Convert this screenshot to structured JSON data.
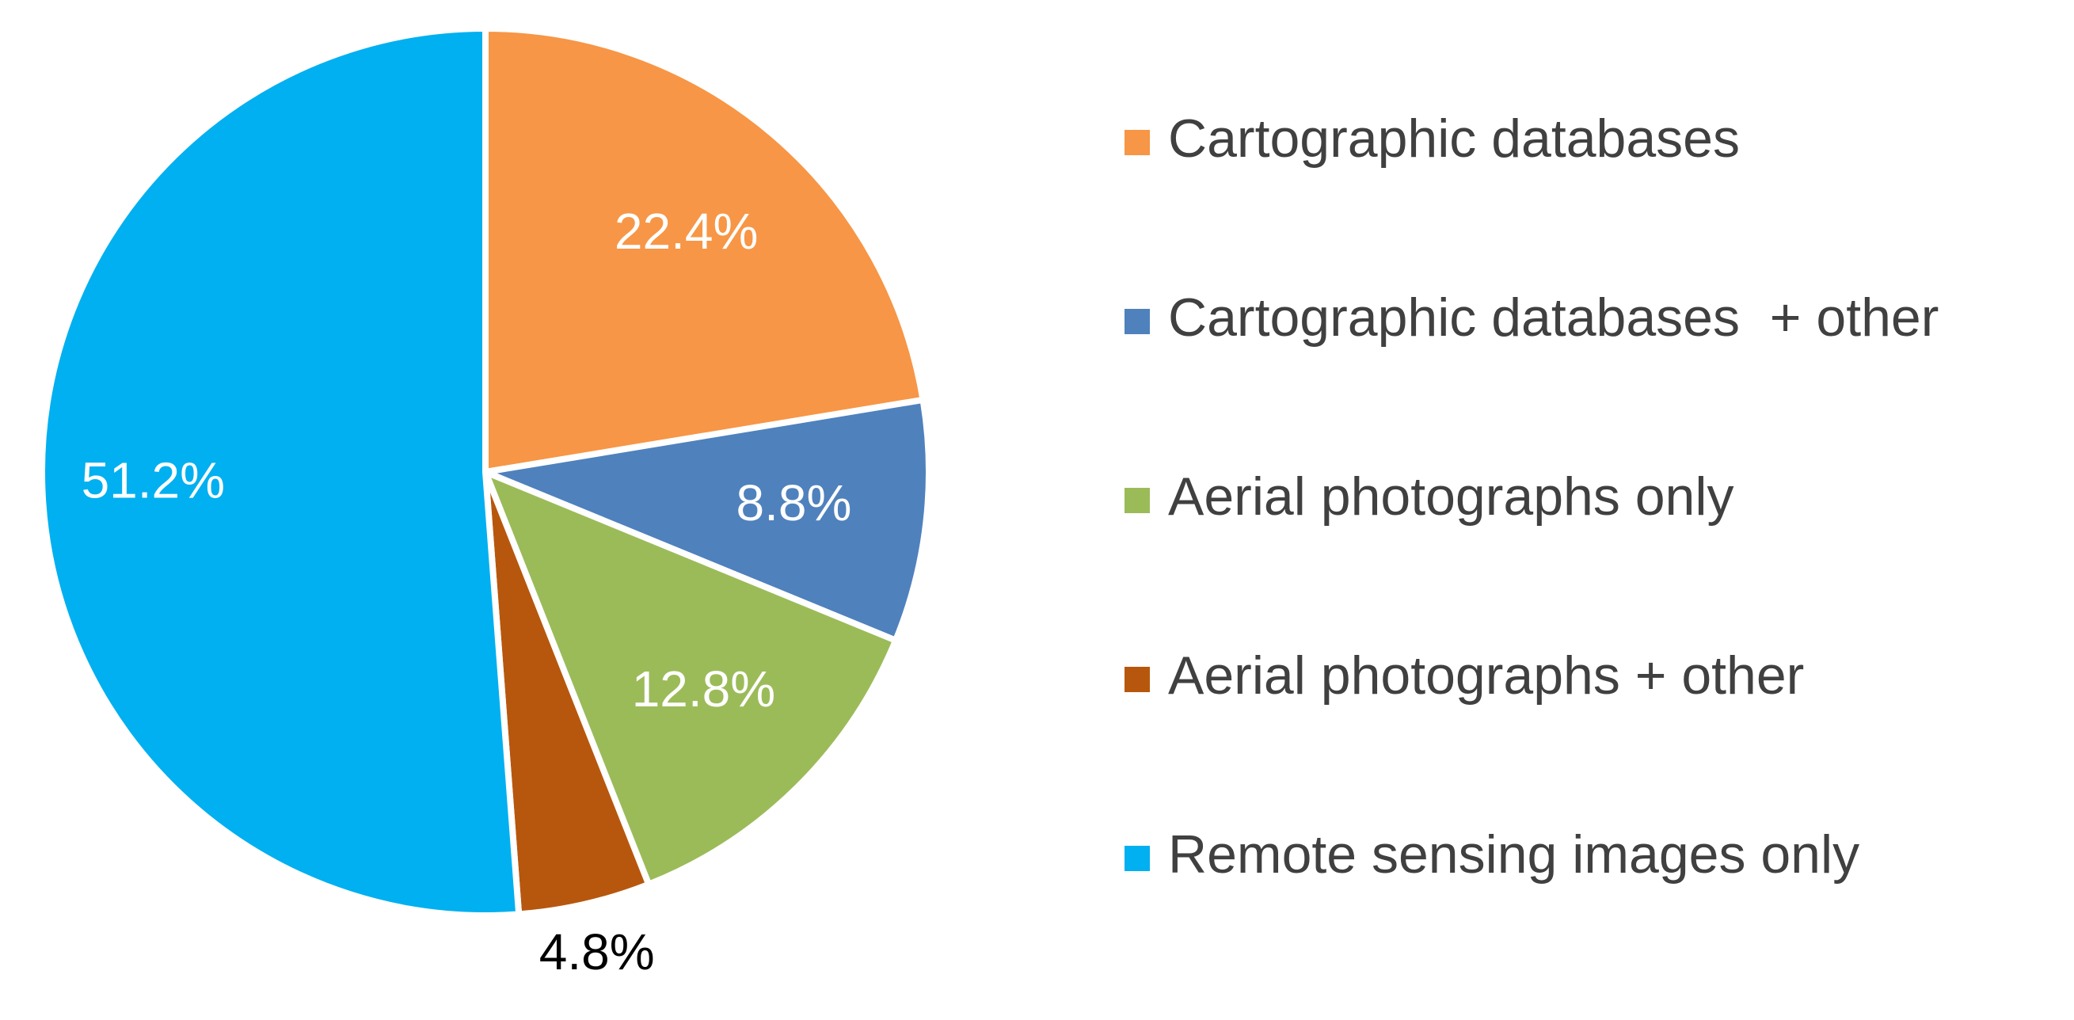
{
  "chart_data": {
    "type": "pie",
    "categories": [
      "Cartographic databases",
      "Cartographic databases  + other",
      "Aerial photographs only",
      "Aerial photographs + other",
      "Remote sensing images only"
    ],
    "values": [
      22.4,
      8.8,
      12.8,
      4.8,
      51.2
    ],
    "value_labels": [
      "22.4%",
      "8.8%",
      "12.8%",
      "4.8%",
      "51.2%"
    ],
    "colors": [
      "#f79646",
      "#4f81bd",
      "#9bbb59",
      "#b7570d",
      "#00b0f0"
    ],
    "legend": "right"
  }
}
